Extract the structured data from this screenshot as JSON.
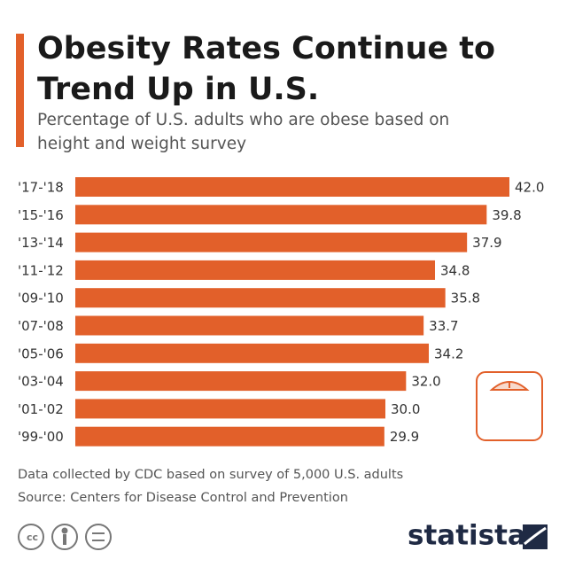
{
  "chart_data": {
    "type": "bar",
    "orientation": "horizontal",
    "title": "Obesity Rates Continue to Trend Up in U.S.",
    "subtitle": "Percentage of U.S. adults who are obese based on height and weight survey",
    "categories": [
      "'17-'18",
      "'15-'16",
      "'13-'14",
      "'11-'12",
      "'09-'10",
      "'07-'08",
      "'05-'06",
      "'03-'04",
      "'01-'02",
      "'99-'00"
    ],
    "values": [
      42.0,
      39.8,
      37.9,
      34.8,
      35.8,
      33.7,
      34.2,
      32.0,
      30.0,
      29.9
    ],
    "value_labels": [
      "42.0",
      "39.8",
      "37.9",
      "34.8",
      "35.8",
      "33.7",
      "34.2",
      "32.0",
      "30.0",
      "29.9"
    ],
    "color": "#e2602a",
    "notes": [
      "Data collected by CDC based on survey of 5,000 U.S. adults",
      "Source: Centers for Disease Control and Prevention"
    ],
    "brand": "statista"
  }
}
